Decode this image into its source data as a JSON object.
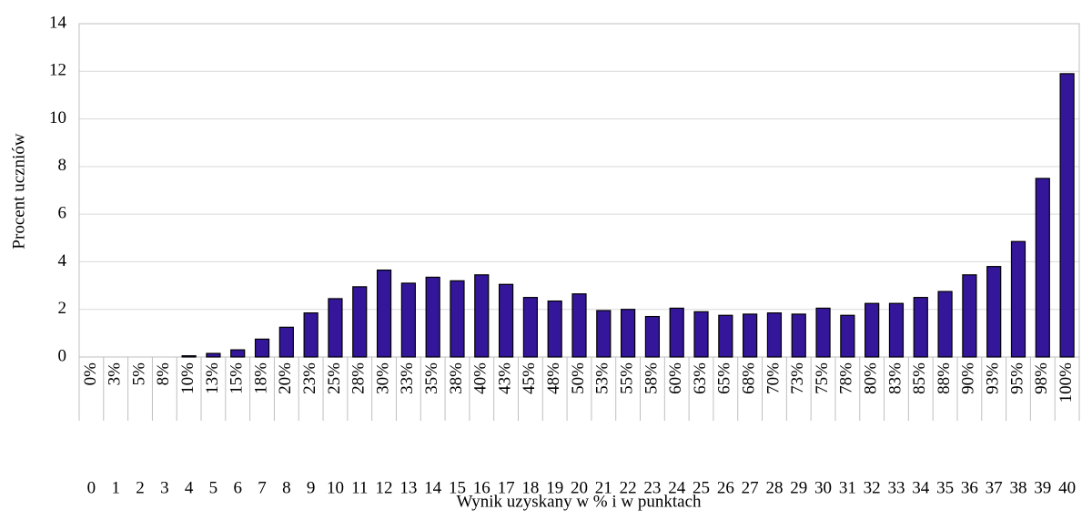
{
  "chart_data": {
    "type": "bar",
    "x_label": "Wynik uzyskany w % i w punktach",
    "y_label": "Procent uczniów",
    "categories": [
      "0%",
      "3%",
      "5%",
      "8%",
      "10%",
      "13%",
      "15%",
      "18%",
      "20%",
      "23%",
      "25%",
      "28%",
      "30%",
      "33%",
      "35%",
      "38%",
      "40%",
      "43%",
      "45%",
      "48%",
      "50%",
      "53%",
      "55%",
      "58%",
      "60%",
      "63%",
      "65%",
      "68%",
      "70%",
      "73%",
      "75%",
      "78%",
      "80%",
      "83%",
      "85%",
      "88%",
      "90%",
      "93%",
      "95%",
      "98%",
      "100%"
    ],
    "points": [
      0,
      1,
      2,
      3,
      4,
      5,
      6,
      7,
      8,
      9,
      10,
      11,
      12,
      13,
      14,
      15,
      16,
      17,
      18,
      19,
      20,
      21,
      22,
      23,
      24,
      25,
      26,
      27,
      28,
      29,
      30,
      31,
      32,
      33,
      34,
      35,
      36,
      37,
      38,
      39,
      40
    ],
    "values": [
      0,
      0,
      0,
      0,
      0.05,
      0.15,
      0.3,
      0.75,
      1.25,
      1.85,
      2.45,
      2.95,
      3.65,
      3.1,
      3.35,
      3.2,
      3.45,
      3.05,
      2.5,
      2.35,
      2.65,
      1.95,
      2.0,
      1.7,
      2.05,
      1.9,
      1.75,
      1.8,
      1.85,
      1.8,
      2.05,
      1.75,
      2.25,
      2.25,
      2.5,
      2.75,
      3.45,
      3.8,
      4.85,
      7.5,
      11.9
    ],
    "color": "#34169a",
    "ylim": [
      0,
      14
    ],
    "yticks": [
      0,
      2,
      4,
      6,
      8,
      10,
      12,
      14
    ],
    "grid": true
  }
}
